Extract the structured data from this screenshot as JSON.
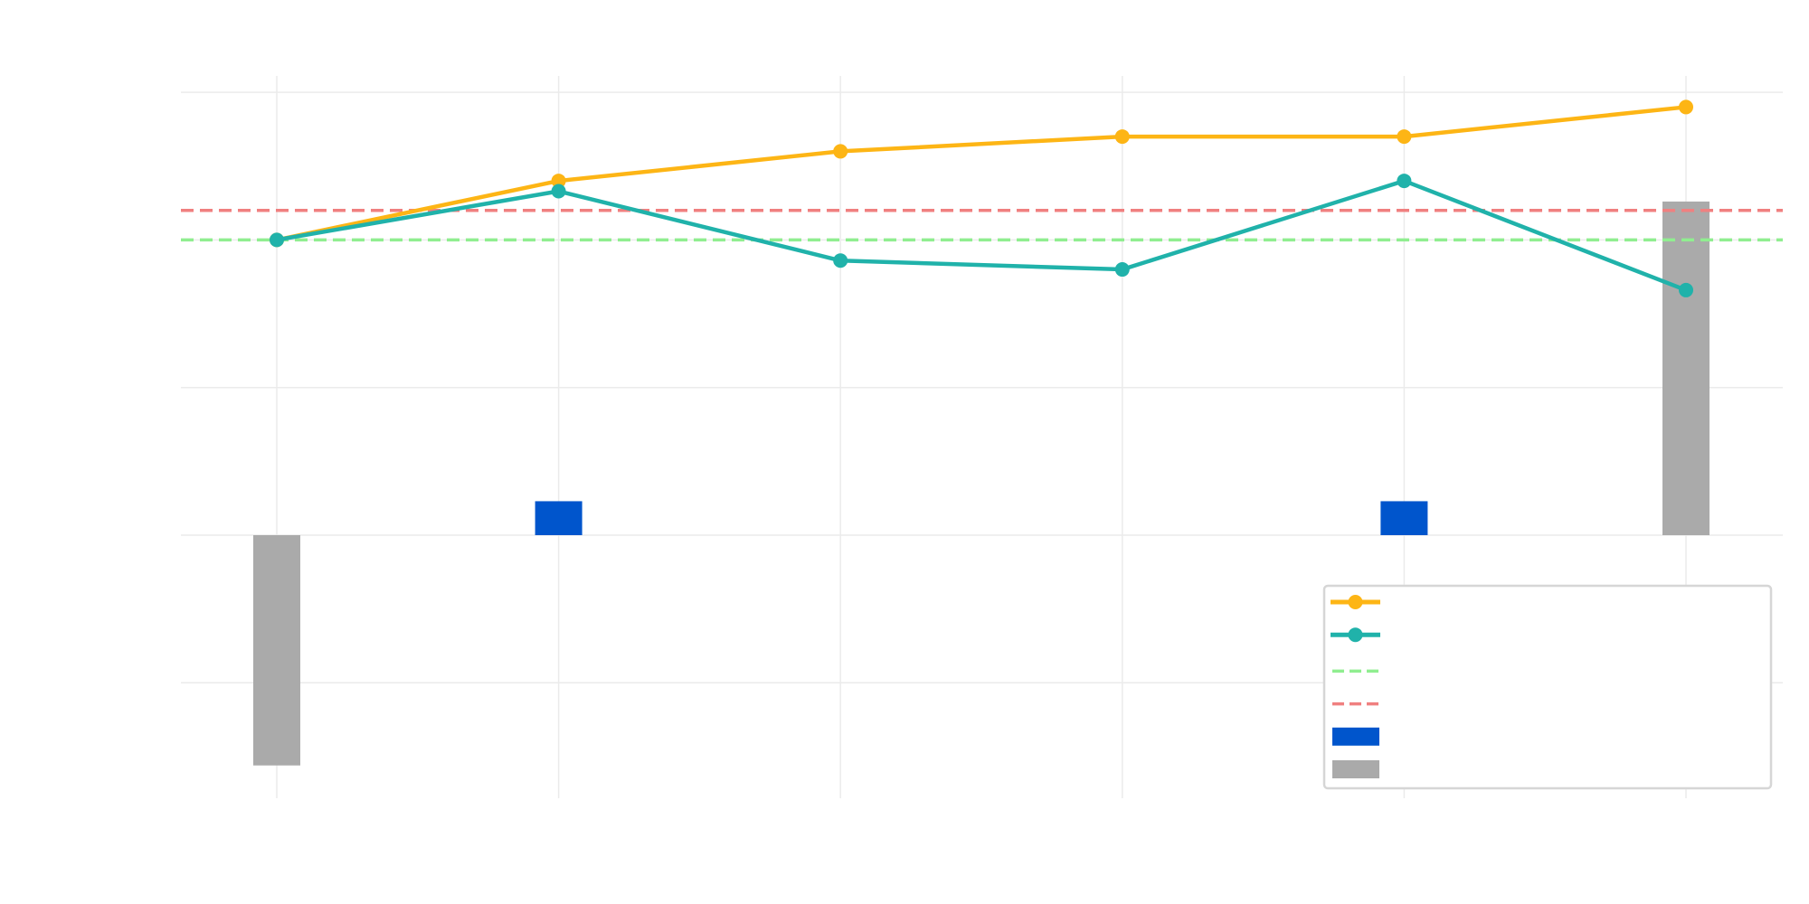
{
  "chart_data": {
    "type": "line",
    "x": [
      0,
      1,
      2,
      3,
      4,
      5
    ],
    "ylim": [
      -1.78,
      3.1
    ],
    "y_gridlines": [
      -1,
      0,
      1,
      2,
      3
    ],
    "grid": true,
    "legend_placement": "bottom-right",
    "series": [
      {
        "kind": "line",
        "color": "#FDB515",
        "marker": "circle",
        "values": [
          2.0,
          2.4,
          2.6,
          2.7,
          2.7,
          2.9
        ]
      },
      {
        "kind": "line",
        "color": "#20B2AA",
        "marker": "circle",
        "values": [
          2.0,
          2.33,
          1.86,
          1.8,
          2.4,
          1.66
        ]
      },
      {
        "kind": "hline",
        "color": "#90EE90",
        "dash": true,
        "value": 2.0
      },
      {
        "kind": "hline",
        "color": "#F08080",
        "dash": true,
        "value": 2.2
      },
      {
        "kind": "bar",
        "color": "#0055CC",
        "values": [
          0,
          0.23,
          0,
          0,
          0.23,
          0
        ]
      },
      {
        "kind": "bar",
        "color": "#AAAAAA",
        "values": [
          -1.56,
          0,
          0,
          0,
          0,
          2.26
        ]
      }
    ]
  }
}
